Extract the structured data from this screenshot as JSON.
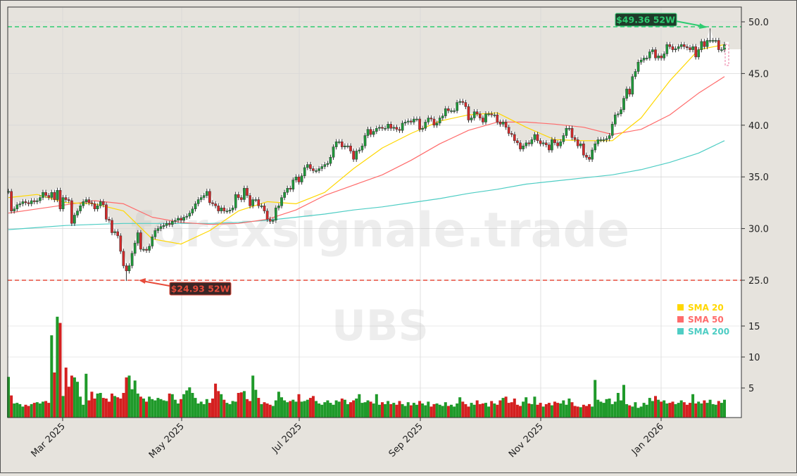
{
  "chart_data": {
    "type": "candlestick",
    "ticker_watermark": "UBS",
    "site_watermark": "forexsignale.trade",
    "x_ticks": [
      "Mar 2025",
      "May 2025",
      "Jul 2025",
      "Sep 2025",
      "Nov 2025",
      "Jan 2026"
    ],
    "price_ticks": [
      "25.0",
      "30.0",
      "35.0",
      "40.0",
      "45.0",
      "50.0"
    ],
    "volume_ticks": [
      "5",
      "10",
      "15"
    ],
    "price_range": [
      23.6,
      51.4
    ],
    "volume_range": [
      0,
      18
    ],
    "grid": true,
    "legend_position": "right",
    "legend": [
      {
        "label": "SMA 20",
        "color": "#FFD700"
      },
      {
        "label": "SMA 50",
        "color": "#FF6B6B"
      },
      {
        "label": "SMA 200",
        "color": "#4ECDC4"
      }
    ],
    "high_52w": {
      "value": 49.36,
      "label": "$49.36 52W",
      "color": "#2ecc71"
    },
    "low_52w": {
      "value": 24.93,
      "label": "$24.93 52W",
      "color": "#e74c3c"
    },
    "colors": {
      "up": "#1f9a3a",
      "down": "#d42a2a",
      "panel": "#e6e3dd"
    },
    "close": [
      33.6,
      31.7,
      31.9,
      32.3,
      32.4,
      32.6,
      32.5,
      32.4,
      32.7,
      32.6,
      32.7,
      33.0,
      33.5,
      33.2,
      33.0,
      33.5,
      32.8,
      33.7,
      31.9,
      33.0,
      32.8,
      32.7,
      30.5,
      31.3,
      31.7,
      32.2,
      32.6,
      32.8,
      32.5,
      32.4,
      31.9,
      32.2,
      32.6,
      32.3,
      30.9,
      30.8,
      29.6,
      29.7,
      29.3,
      27.8,
      26.4,
      25.9,
      26.4,
      27.6,
      28.6,
      29.6,
      28.0,
      28.0,
      27.9,
      28.3,
      29.2,
      29.8,
      30.0,
      30.2,
      30.3,
      30.5,
      30.4,
      30.7,
      30.8,
      31.0,
      30.8,
      31.1,
      31.2,
      31.5,
      31.9,
      32.4,
      32.8,
      33.0,
      33.2,
      33.6,
      32.5,
      32.4,
      32.2,
      31.7,
      32.0,
      31.7,
      31.7,
      31.8,
      32.0,
      33.3,
      33.0,
      32.8,
      33.9,
      33.2,
      32.2,
      32.8,
      32.8,
      32.2,
      32.2,
      31.7,
      30.9,
      30.7,
      30.8,
      32.0,
      32.2,
      33.0,
      33.5,
      33.9,
      33.8,
      34.7,
      35.0,
      34.5,
      35.1,
      35.9,
      36.2,
      35.8,
      35.6,
      35.6,
      35.8,
      36.0,
      36.2,
      36.3,
      36.9,
      37.9,
      38.4,
      38.4,
      37.9,
      38.0,
      38.0,
      37.5,
      36.7,
      37.5,
      37.6,
      38.0,
      39.0,
      39.6,
      39.1,
      39.4,
      39.7,
      39.8,
      39.7,
      39.7,
      40.1,
      39.7,
      39.8,
      39.6,
      39.5,
      40.2,
      40.3,
      40.4,
      40.3,
      40.6,
      40.6,
      39.6,
      39.7,
      40.3,
      40.7,
      40.6,
      40.0,
      40.2,
      40.7,
      40.9,
      41.6,
      41.4,
      41.4,
      41.4,
      42.2,
      42.3,
      42.2,
      41.8,
      40.5,
      40.7,
      41.3,
      41.1,
      40.7,
      40.3,
      41.1,
      41.1,
      41.0,
      41.0,
      40.3,
      40.1,
      40.3,
      39.8,
      39.2,
      39.1,
      38.5,
      38.3,
      37.7,
      38.0,
      38.3,
      38.2,
      38.6,
      39.1,
      38.5,
      38.2,
      38.3,
      38.1,
      37.6,
      38.6,
      38.3,
      38.0,
      38.4,
      39.0,
      39.7,
      39.7,
      38.8,
      38.6,
      38.0,
      38.2,
      37.1,
      36.9,
      36.7,
      37.6,
      38.2,
      38.6,
      38.6,
      38.6,
      38.7,
      39.0,
      40.1,
      41.0,
      41.1,
      41.5,
      42.6,
      43.5,
      43.0,
      44.7,
      45.2,
      46.1,
      46.3,
      46.5,
      46.5,
      47.1,
      47.3,
      46.5,
      46.7,
      46.5,
      46.9,
      47.8,
      47.6,
      47.3,
      47.4,
      47.6,
      47.8,
      47.6,
      47.5,
      47.3,
      47.6,
      46.6,
      47.3,
      48.1,
      47.6,
      48.2,
      48.2,
      48.2,
      48.2,
      47.3,
      47.3,
      47.8
    ],
    "volume_millions": [
      6.8,
      3.8,
      2.5,
      2.6,
      2.4,
      2.0,
      2.3,
      2.1,
      2.4,
      2.6,
      2.7,
      2.5,
      2.8,
      2.9,
      2.6,
      13.5,
      7.5,
      16.5,
      15.5,
      3.7,
      8.3,
      5.2,
      7.0,
      6.7,
      6.0,
      3.6,
      2.3,
      7.3,
      3.0,
      4.4,
      3.3,
      4.1,
      4.2,
      3.4,
      3.3,
      2.8,
      4.1,
      3.7,
      3.5,
      3.3,
      4.2,
      6.7,
      7.0,
      4.8,
      6.2,
      4.1,
      3.6,
      3.3,
      2.8,
      3.6,
      3.2,
      3.0,
      3.4,
      3.2,
      3.0,
      2.9,
      4.1,
      4.0,
      3.1,
      2.5,
      3.2,
      4.0,
      4.6,
      5.1,
      4.2,
      3.4,
      2.5,
      2.8,
      2.4,
      3.2,
      2.6,
      3.3,
      5.7,
      4.5,
      4.0,
      3.1,
      2.6,
      2.4,
      2.9,
      2.8,
      4.2,
      4.3,
      4.5,
      3.2,
      2.9,
      7.0,
      4.7,
      3.4,
      2.4,
      2.7,
      2.5,
      2.3,
      2.1,
      3.0,
      4.4,
      3.5,
      3.0,
      2.7,
      2.9,
      3.1,
      2.8,
      4.0,
      2.8,
      2.9,
      3.1,
      3.4,
      3.7,
      2.9,
      2.5,
      2.3,
      2.7,
      3.0,
      2.6,
      2.3,
      3.0,
      2.8,
      3.3,
      3.1,
      2.4,
      2.7,
      3.0,
      3.3,
      4.0,
      2.6,
      2.7,
      3.0,
      2.8,
      2.5,
      4.0,
      2.3,
      2.7,
      2.4,
      2.9,
      2.4,
      2.6,
      2.3,
      2.9,
      2.4,
      2.1,
      2.7,
      2.2,
      2.6,
      2.3,
      2.9,
      2.5,
      2.2,
      2.8,
      2.0,
      2.4,
      2.5,
      2.3,
      2.1,
      2.7,
      2.1,
      2.3,
      2.0,
      2.5,
      3.5,
      2.8,
      2.4,
      2.0,
      2.6,
      2.3,
      3.0,
      2.4,
      2.5,
      2.6,
      2.0,
      2.9,
      2.5,
      2.3,
      3.0,
      3.4,
      3.6,
      2.6,
      2.7,
      3.3,
      2.3,
      2.1,
      2.8,
      3.5,
      2.5,
      2.4,
      3.6,
      2.3,
      2.6,
      2.0,
      2.4,
      2.6,
      2.2,
      2.8,
      2.6,
      2.5,
      3.0,
      2.3,
      3.3,
      2.7,
      2.1,
      2.0,
      1.9,
      2.3,
      2.1,
      2.4,
      2.0,
      6.3,
      3.1,
      2.8,
      2.6,
      3.2,
      3.3,
      2.4,
      2.8,
      4.2,
      3.0,
      5.5,
      2.4,
      2.2,
      2.0,
      2.7,
      1.8,
      2.0,
      2.6,
      2.3,
      3.4,
      2.9,
      3.7,
      3.1,
      2.8,
      3.0,
      2.5,
      2.6,
      2.8,
      2.4,
      2.6,
      3.0,
      2.7,
      2.3,
      2.6,
      4.0,
      2.5,
      2.8,
      2.5,
      3.0,
      2.6,
      3.1,
      2.4,
      2.3,
      2.9,
      2.6,
      3.1
    ],
    "sma_20_every_10": [
      33.0,
      33.3,
      32.5,
      32.4,
      31.7,
      29.0,
      28.5,
      29.8,
      31.7,
      32.6,
      32.4,
      33.5,
      35.8,
      37.8,
      39.2,
      40.4,
      41.0,
      41.2,
      39.8,
      38.6,
      38.5,
      38.5,
      40.7,
      44.3,
      47.3,
      47.8
    ],
    "sma_50_every_10": [
      31.5,
      31.9,
      32.3,
      32.7,
      32.4,
      31.1,
      30.6,
      30.4,
      30.5,
      30.9,
      31.8,
      33.2,
      34.2,
      35.2,
      36.6,
      38.2,
      39.5,
      40.3,
      40.3,
      40.1,
      39.8,
      39.1,
      39.6,
      41.0,
      43.1,
      44.7
    ],
    "sma_200_every_10": [
      29.9,
      30.1,
      30.3,
      30.4,
      30.5,
      30.5,
      30.5,
      30.5,
      30.6,
      30.8,
      31.1,
      31.4,
      31.8,
      32.1,
      32.5,
      32.9,
      33.4,
      33.8,
      34.3,
      34.6,
      34.9,
      35.2,
      35.7,
      36.4,
      37.3,
      38.5
    ]
  }
}
